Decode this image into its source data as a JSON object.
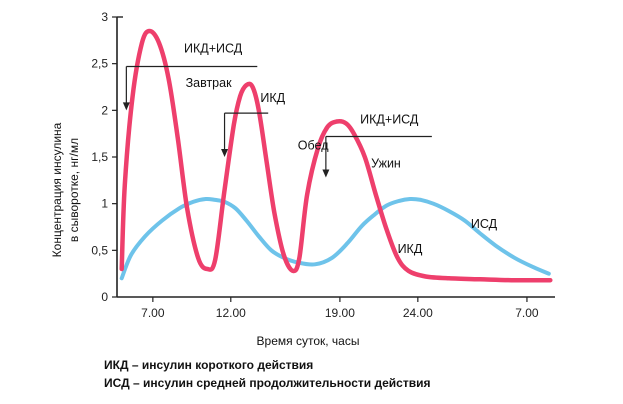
{
  "chart_data": {
    "type": "line",
    "xlabel": "Время суток, часы",
    "ylabel_lines": [
      "Концентрация инсулина",
      "в сыворотке, нг/мл"
    ],
    "ylim": [
      0,
      3
    ],
    "y_ticks": [
      "0",
      "0,5",
      "1",
      "1,5",
      "2",
      "2,5",
      "3"
    ],
    "x_ticks": [
      {
        "hour": 7,
        "label": "7.00"
      },
      {
        "hour": 12,
        "label": "12.00"
      },
      {
        "hour": 19,
        "label": "19.00"
      },
      {
        "hour": 24,
        "label": "24.00"
      },
      {
        "hour": 31,
        "label": "7.00"
      }
    ],
    "grid": false,
    "series": [
      {
        "name": "ИКД",
        "color": "#ee3f6c",
        "x": [
          5.0,
          5.2,
          5.7,
          6.3,
          6.8,
          7.4,
          8.0,
          8.6,
          9.2,
          9.9,
          10.5,
          11.0,
          11.6,
          12.2,
          12.6,
          13.0,
          13.4,
          13.8,
          14.3,
          14.8,
          15.4,
          16.0,
          16.4,
          16.9,
          17.6,
          18.2,
          18.8,
          19.4,
          19.9,
          20.6,
          21.3,
          22.0,
          22.7,
          23.4,
          24.5,
          26.0,
          28.0,
          30.0,
          32.5
        ],
        "values": [
          0.3,
          1.2,
          2.15,
          2.72,
          2.85,
          2.72,
          2.35,
          1.7,
          0.95,
          0.42,
          0.3,
          0.4,
          1.15,
          1.85,
          2.15,
          2.27,
          2.25,
          2.0,
          1.45,
          0.9,
          0.45,
          0.28,
          0.42,
          1.1,
          1.6,
          1.82,
          1.88,
          1.86,
          1.75,
          1.5,
          1.1,
          0.72,
          0.42,
          0.28,
          0.22,
          0.2,
          0.19,
          0.18,
          0.18
        ]
      },
      {
        "name": "ИСД",
        "color": "#6ec3ea",
        "x": [
          5.0,
          5.6,
          6.5,
          7.6,
          8.7,
          9.6,
          10.4,
          11.0,
          11.6,
          12.3,
          13.0,
          13.8,
          14.6,
          15.4,
          16.3,
          17.4,
          18.5,
          19.5,
          20.4,
          21.2,
          22.0,
          22.8,
          23.5,
          24.2,
          25.0,
          26.0,
          27.0,
          28.0,
          29.0,
          30.2,
          31.4,
          32.4
        ],
        "values": [
          0.2,
          0.45,
          0.65,
          0.82,
          0.95,
          1.02,
          1.05,
          1.04,
          1.02,
          0.95,
          0.82,
          0.65,
          0.5,
          0.42,
          0.37,
          0.35,
          0.42,
          0.58,
          0.76,
          0.88,
          0.98,
          1.03,
          1.05,
          1.04,
          1.0,
          0.92,
          0.82,
          0.68,
          0.55,
          0.42,
          0.32,
          0.25
        ]
      }
    ],
    "annotations": [
      {
        "text": "ИКД+ИСД",
        "x": 9.0,
        "y": 2.62
      },
      {
        "text": "Завтрак",
        "x": 9.1,
        "y": 2.25
      },
      {
        "text": "ИКД",
        "x": 13.9,
        "y": 2.09
      },
      {
        "text": "Обед",
        "x": 16.3,
        "y": 1.58
      },
      {
        "text": "ИКД+ИСД",
        "x": 20.3,
        "y": 1.86
      },
      {
        "text": "Ужин",
        "x": 21.0,
        "y": 1.39
      },
      {
        "text": "ИСД",
        "x": 27.4,
        "y": 0.74
      },
      {
        "text": "ИКД",
        "x": 22.7,
        "y": 0.47
      }
    ],
    "injection_markers": [
      {
        "x": 5.3,
        "x_end": 13.7,
        "y": 2.47,
        "y_tip": 2.0
      },
      {
        "x": 11.6,
        "x_end": 14.4,
        "y": 1.97,
        "y_tip": 1.5
      },
      {
        "x": 18.1,
        "x_end": 24.9,
        "y": 1.72,
        "y_tip": 1.28
      }
    ]
  },
  "footnotes": [
    "ИКД – инсулин  короткого  действия",
    "ИСД – инсулин  средней  продолжительности  действия"
  ]
}
